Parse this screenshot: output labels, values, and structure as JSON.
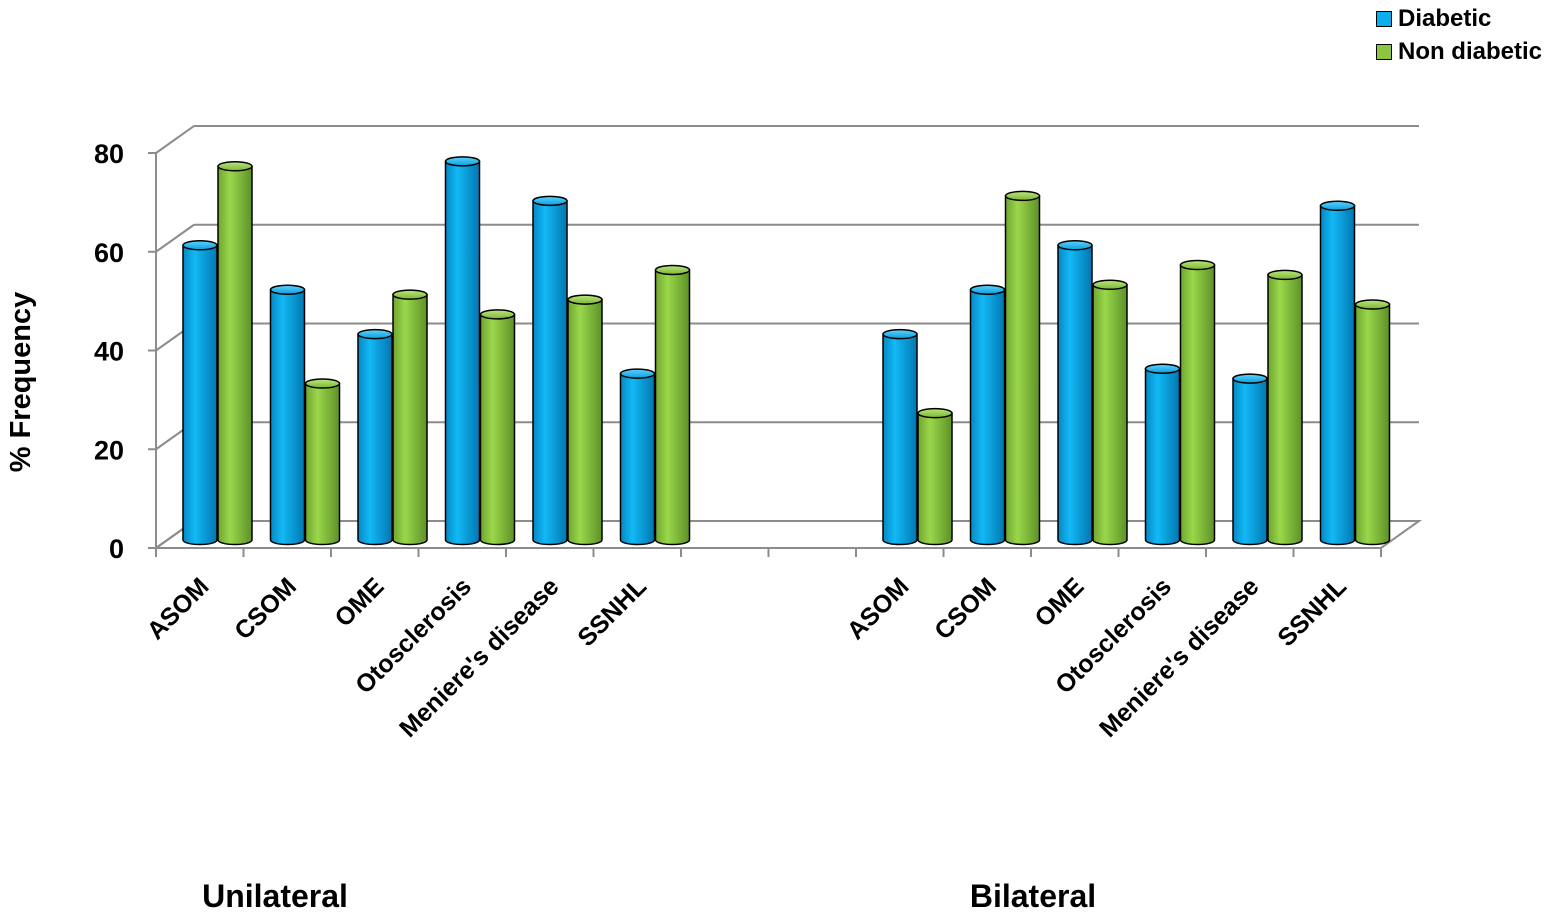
{
  "chart_data": {
    "type": "bar",
    "ylabel": "% Frequency",
    "ylim": [
      0,
      80
    ],
    "yticks": [
      0,
      20,
      40,
      60,
      80
    ],
    "grid": true,
    "legend_position": "top-right",
    "groups": [
      {
        "name": "Unilateral",
        "categories": [
          "ASOM",
          "CSOM",
          "OME",
          "Otosclerosis",
          "Meniere's disease",
          "SSNHL"
        ],
        "series": [
          {
            "name": "Diabetic",
            "values": [
              60,
              51,
              42,
              77,
              69,
              34
            ]
          },
          {
            "name": "Non diabetic",
            "values": [
              76,
              32,
              50,
              46,
              49,
              55
            ]
          }
        ]
      },
      {
        "name": "Bilateral",
        "categories": [
          "ASOM",
          "CSOM",
          "OME",
          "Otosclerosis",
          "Meniere's disease",
          "SSNHL"
        ],
        "series": [
          {
            "name": "Diabetic",
            "values": [
              42,
              51,
              60,
              35,
              33,
              68
            ]
          },
          {
            "name": "Non diabetic",
            "values": [
              26,
              70,
              52,
              56,
              54,
              48
            ]
          }
        ]
      }
    ],
    "legend": [
      {
        "name": "Diabetic",
        "color": "#0AAEEC"
      },
      {
        "name": "Non diabetic",
        "color": "#8DC63F"
      }
    ]
  }
}
